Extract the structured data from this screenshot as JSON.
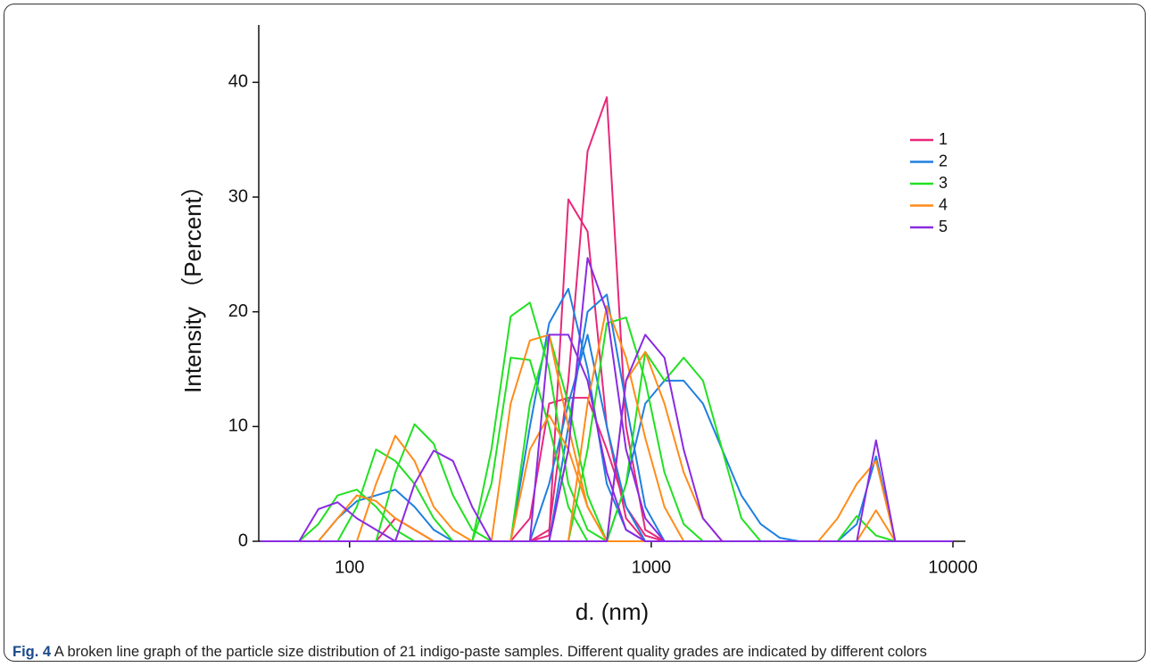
{
  "chart_data": {
    "type": "line",
    "xlabel": "d. (nm)",
    "ylabel": "Intensity （Percent）",
    "xscale": "log",
    "x": [
      50.75,
      58.77,
      68.06,
      78.82,
      91.28,
      105.7,
      122.4,
      141.8,
      164.2,
      190.1,
      220.2,
      255,
      295.3,
      342,
      396.1,
      458.7,
      531.2,
      615.1,
      712.4,
      825,
      955.4,
      1106,
      1281,
      1484,
      1718,
      1990,
      2305,
      2669,
      3091,
      3580,
      4145,
      4801,
      5560,
      6439,
      7456,
      8635,
      10000
    ],
    "xlim": [
      50,
      11000
    ],
    "xticks": [
      100,
      1000,
      10000
    ],
    "ylim": [
      0,
      45
    ],
    "yticks": [
      0,
      10,
      20,
      30,
      40
    ],
    "legend": "upper right",
    "series": [
      {
        "name": "1",
        "color": "#e8287a",
        "samples": [
          [
            0,
            0,
            0,
            0,
            0,
            0,
            0,
            0,
            0,
            0,
            0,
            0,
            0,
            0,
            0,
            1,
            14,
            34,
            38.7,
            10,
            1,
            0,
            0,
            0,
            0,
            0,
            0,
            0,
            0,
            0,
            0,
            0,
            0,
            0,
            0,
            0,
            0
          ],
          [
            0,
            0,
            0,
            0,
            0,
            0,
            0,
            0,
            0,
            0,
            0,
            0,
            0,
            0,
            0,
            0.5,
            29.8,
            27,
            10,
            2,
            0,
            0,
            0,
            0,
            0,
            0,
            0,
            0,
            0,
            0,
            0,
            0,
            0,
            0,
            0,
            0,
            0
          ],
          [
            0,
            0,
            0,
            0,
            0,
            0,
            0,
            2,
            1,
            0,
            0,
            0,
            0,
            0,
            2,
            12,
            12.5,
            12.5,
            8,
            3,
            0.5,
            0,
            0,
            0,
            0,
            0,
            0,
            0,
            0,
            0,
            0,
            0,
            0,
            0,
            0,
            0,
            0
          ]
        ]
      },
      {
        "name": "2",
        "color": "#1f7fe0",
        "samples": [
          [
            0,
            0,
            0,
            0,
            0,
            0,
            0,
            0,
            0,
            0,
            0,
            0,
            0,
            0,
            10,
            19,
            22,
            15,
            5,
            1,
            0,
            0,
            0,
            0,
            0,
            0,
            0,
            0,
            0,
            0,
            0,
            0,
            0,
            0,
            0,
            0,
            0
          ],
          [
            0,
            0,
            0,
            0,
            0,
            0,
            0,
            0,
            0,
            0,
            0,
            0,
            0,
            0,
            0,
            0,
            10,
            20,
            21.5,
            12,
            3,
            0,
            0,
            0,
            0,
            0,
            0,
            0,
            0,
            0,
            0,
            0,
            0,
            0,
            0,
            0,
            0
          ],
          [
            0,
            0,
            0,
            0,
            0,
            0,
            0,
            0,
            0,
            0,
            0,
            0,
            0,
            0,
            0,
            0,
            0,
            0,
            0,
            5,
            12,
            14,
            14,
            12,
            8,
            4,
            1.5,
            0.3,
            0,
            0,
            0,
            1.5,
            7.4,
            0,
            0,
            0,
            0
          ],
          [
            0,
            0,
            0,
            0,
            2,
            3.5,
            4,
            4.5,
            3,
            1,
            0,
            0,
            0,
            0,
            0,
            5,
            12,
            18,
            10,
            3,
            0,
            0,
            0,
            0,
            0,
            0,
            0,
            0,
            0,
            0,
            0,
            0,
            0,
            0,
            0,
            0,
            0
          ]
        ]
      },
      {
        "name": "3",
        "color": "#22e022",
        "samples": [
          [
            0,
            0,
            0,
            0,
            0,
            0,
            0,
            0,
            0,
            0,
            0,
            0,
            8,
            19.6,
            20.8,
            15,
            5,
            1,
            0,
            0,
            0,
            0,
            0,
            0,
            0,
            0,
            0,
            0,
            0,
            0,
            0,
            0,
            0,
            0,
            0,
            0,
            0
          ],
          [
            0,
            0,
            0,
            1.5,
            4,
            4.5,
            3,
            1,
            0,
            0,
            0,
            0,
            5,
            16,
            15.8,
            10,
            3,
            0,
            0,
            0,
            0,
            0,
            0,
            0,
            0,
            0,
            0,
            0,
            0,
            0,
            0,
            0,
            0,
            0,
            0,
            0,
            0
          ],
          [
            0,
            0,
            0,
            0,
            0,
            0,
            0,
            6,
            10.2,
            8.5,
            4,
            1,
            0,
            0,
            0,
            0,
            0,
            0,
            0,
            0,
            0,
            0,
            0,
            0,
            0,
            0,
            0,
            0,
            0,
            0,
            0,
            0,
            0,
            0,
            0,
            0,
            0
          ],
          [
            0,
            0,
            0,
            0,
            0,
            0,
            0,
            0,
            0,
            0,
            0,
            0,
            0,
            0,
            0,
            0,
            0,
            8,
            19,
            19.5,
            14,
            6,
            1.5,
            0,
            0,
            0,
            0,
            0,
            0,
            0,
            0,
            0,
            0,
            0,
            0,
            0,
            0
          ],
          [
            0,
            0,
            0,
            0,
            0,
            0,
            0,
            0,
            0,
            0,
            0,
            0,
            0,
            0,
            0,
            0,
            0,
            0,
            0,
            5,
            16.5,
            14,
            16,
            14,
            8,
            2,
            0,
            0,
            0,
            0,
            0,
            2.2,
            0.5,
            0,
            0,
            0,
            0
          ],
          [
            0,
            0,
            0,
            0,
            0,
            3,
            8,
            7,
            5,
            2,
            0,
            0,
            0,
            0,
            12,
            18,
            12,
            4,
            0,
            0,
            0,
            0,
            0,
            0,
            0,
            0,
            0,
            0,
            0,
            0,
            0,
            0,
            0,
            0,
            0,
            0,
            0
          ]
        ]
      },
      {
        "name": "4",
        "color": "#ff8c1a",
        "samples": [
          [
            0,
            0,
            0,
            0,
            0,
            0,
            5,
            9.2,
            7,
            3,
            1,
            0,
            0,
            0,
            0,
            0,
            0,
            0,
            0,
            0,
            0,
            0,
            0,
            0,
            0,
            0,
            0,
            0,
            0,
            0,
            0,
            0,
            0,
            0,
            0,
            0,
            0
          ],
          [
            0,
            0,
            0,
            0,
            0,
            0,
            0,
            0,
            0,
            0,
            0,
            0,
            0,
            12,
            17.5,
            18,
            10,
            3,
            0,
            0,
            0,
            0,
            0,
            0,
            0,
            0,
            0,
            0,
            0,
            0,
            0,
            0,
            0,
            0,
            0,
            0,
            0
          ],
          [
            0,
            0,
            0,
            0,
            0,
            0,
            0,
            0,
            0,
            0,
            0,
            0,
            0,
            0,
            0,
            0,
            0,
            12,
            20.5,
            16,
            9,
            3,
            0,
            0,
            0,
            0,
            0,
            0,
            0,
            0,
            0,
            0,
            2.7,
            0,
            0,
            0,
            0
          ],
          [
            0,
            0,
            0,
            0,
            0,
            0,
            0,
            0,
            0,
            0,
            0,
            0,
            0,
            0,
            0,
            0,
            0,
            0,
            0,
            14,
            16.5,
            12,
            6,
            2,
            0,
            0,
            0,
            0,
            0,
            0,
            2,
            5,
            7,
            0,
            0,
            0,
            0
          ],
          [
            0,
            0,
            0,
            0,
            2,
            4,
            3.5,
            2,
            1,
            0,
            0,
            0,
            0,
            0,
            8,
            11,
            8,
            3,
            0,
            0,
            0,
            0,
            0,
            0,
            0,
            0,
            0,
            0,
            0,
            0,
            0,
            0,
            0,
            0,
            0,
            0,
            0
          ]
        ]
      },
      {
        "name": "5",
        "color": "#8a2be2",
        "samples": [
          [
            0,
            0,
            0,
            2.8,
            3.4,
            2,
            1,
            0,
            0,
            0,
            0,
            0,
            0,
            0,
            0,
            18,
            18,
            14,
            6,
            1,
            0,
            0,
            0,
            0,
            0,
            0,
            0,
            0,
            0,
            0,
            0,
            0,
            0,
            0,
            0,
            0,
            0
          ],
          [
            0,
            0,
            0,
            0,
            0,
            0,
            0,
            0,
            0,
            0,
            0,
            0,
            0,
            0,
            0,
            0,
            8,
            24.7,
            20,
            8,
            2,
            0,
            0,
            0,
            0,
            0,
            0,
            0,
            0,
            0,
            0,
            0,
            0,
            0,
            0,
            0,
            0
          ],
          [
            0,
            0,
            0,
            0,
            0,
            0,
            0,
            0,
            5,
            7.9,
            7,
            3,
            0,
            0,
            0,
            0,
            0,
            0,
            0,
            14,
            18,
            16,
            8,
            2,
            0,
            0,
            0,
            0,
            0,
            0,
            0,
            0,
            8.8,
            0,
            0,
            0,
            0
          ]
        ]
      }
    ]
  },
  "caption": {
    "label": "Fig. 4",
    "text": "A broken line graph of the particle size distribution of 21 indigo-paste samples. Different quality grades are indicated by different colors"
  }
}
